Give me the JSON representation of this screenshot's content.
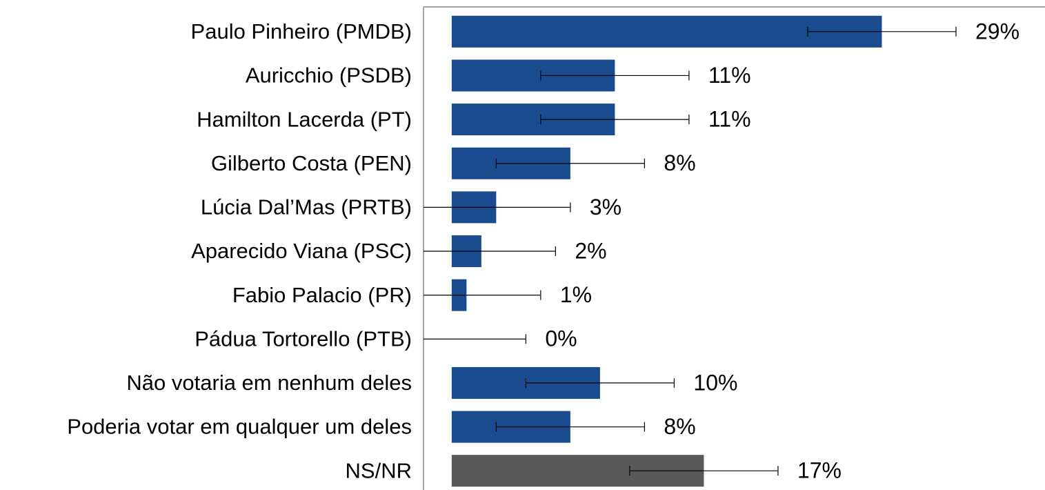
{
  "chart_data": {
    "type": "bar",
    "orientation": "horizontal",
    "categories": [
      "Paulo Pinheiro (PMDB)",
      "Auricchio (PSDB)",
      "Hamilton Lacerda (PT)",
      "Gilberto Costa (PEN)",
      "Lúcia Dal’Mas (PRTB)",
      "Aparecido Viana (PSC)",
      "Fabio Palacio (PR)",
      "Pádua Tortorello (PTB)",
      "Não votaria em nenhum deles",
      "Poderia votar em qualquer um deles",
      "NS/NR"
    ],
    "values": [
      29,
      11,
      11,
      8,
      3,
      2,
      1,
      0,
      10,
      8,
      17
    ],
    "value_labels": [
      "29%",
      "11%",
      "11%",
      "8%",
      "3%",
      "2%",
      "1%",
      "0%",
      "10%",
      "8%",
      "17%"
    ],
    "errors": [
      5,
      5,
      5,
      5,
      5,
      5,
      5,
      5,
      5,
      5,
      5
    ],
    "colors": [
      "#1a4b8f",
      "#1a4b8f",
      "#1a4b8f",
      "#1a4b8f",
      "#1a4b8f",
      "#1a4b8f",
      "#1a4b8f",
      "#1a4b8f",
      "#1a4b8f",
      "#1a4b8f",
      "#595959"
    ],
    "xlim": [
      -1.9,
      40
    ]
  }
}
